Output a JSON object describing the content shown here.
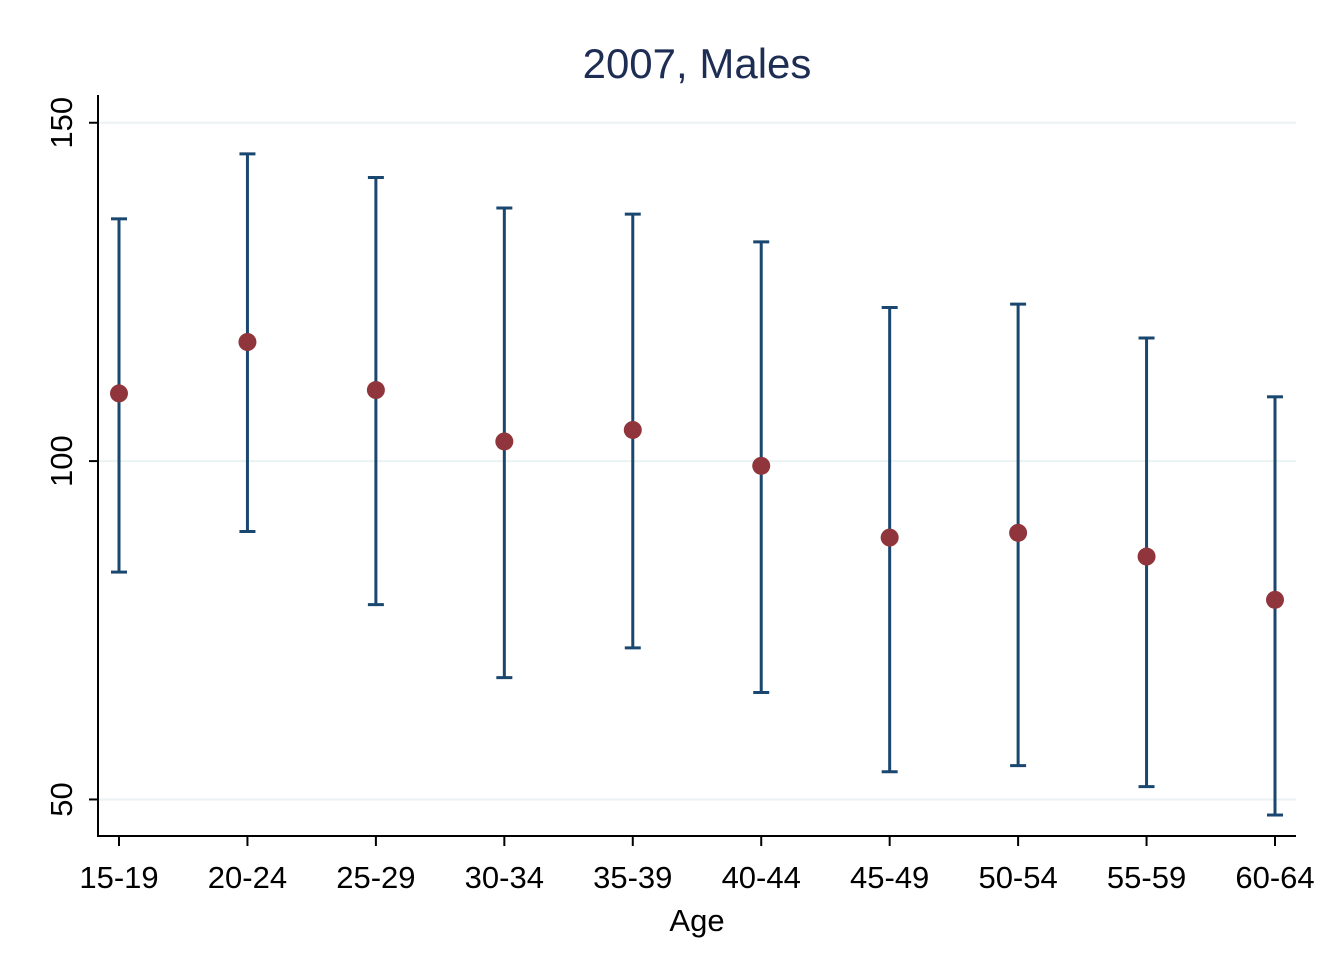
{
  "chart_data": {
    "type": "scatter",
    "subtype": "point-estimate-with-error-bars",
    "title": "2007, Males",
    "xlabel": "Age",
    "ylabel": "",
    "categories": [
      "15-19",
      "20-24",
      "25-29",
      "30-34",
      "35-39",
      "40-44",
      "45-49",
      "50-54",
      "55-59",
      "60-64"
    ],
    "estimates": [
      110.0,
      117.6,
      110.5,
      102.9,
      104.6,
      99.3,
      88.7,
      89.4,
      85.9,
      79.5
    ],
    "lower": [
      83.6,
      89.6,
      78.8,
      68.0,
      72.4,
      65.8,
      54.1,
      55.0,
      51.9,
      47.7
    ],
    "upper": [
      135.8,
      145.4,
      141.9,
      137.4,
      136.5,
      132.4,
      122.7,
      123.2,
      118.2,
      109.5
    ],
    "yticks": [
      50,
      100,
      150
    ],
    "ylim": [
      44.6,
      154.1
    ],
    "grid": true,
    "colors": {
      "point": "#90353b",
      "errorbar": "#1a476f",
      "title": "#1e2d53",
      "gridline": "#eaf2f3",
      "axis": "#000000"
    }
  }
}
